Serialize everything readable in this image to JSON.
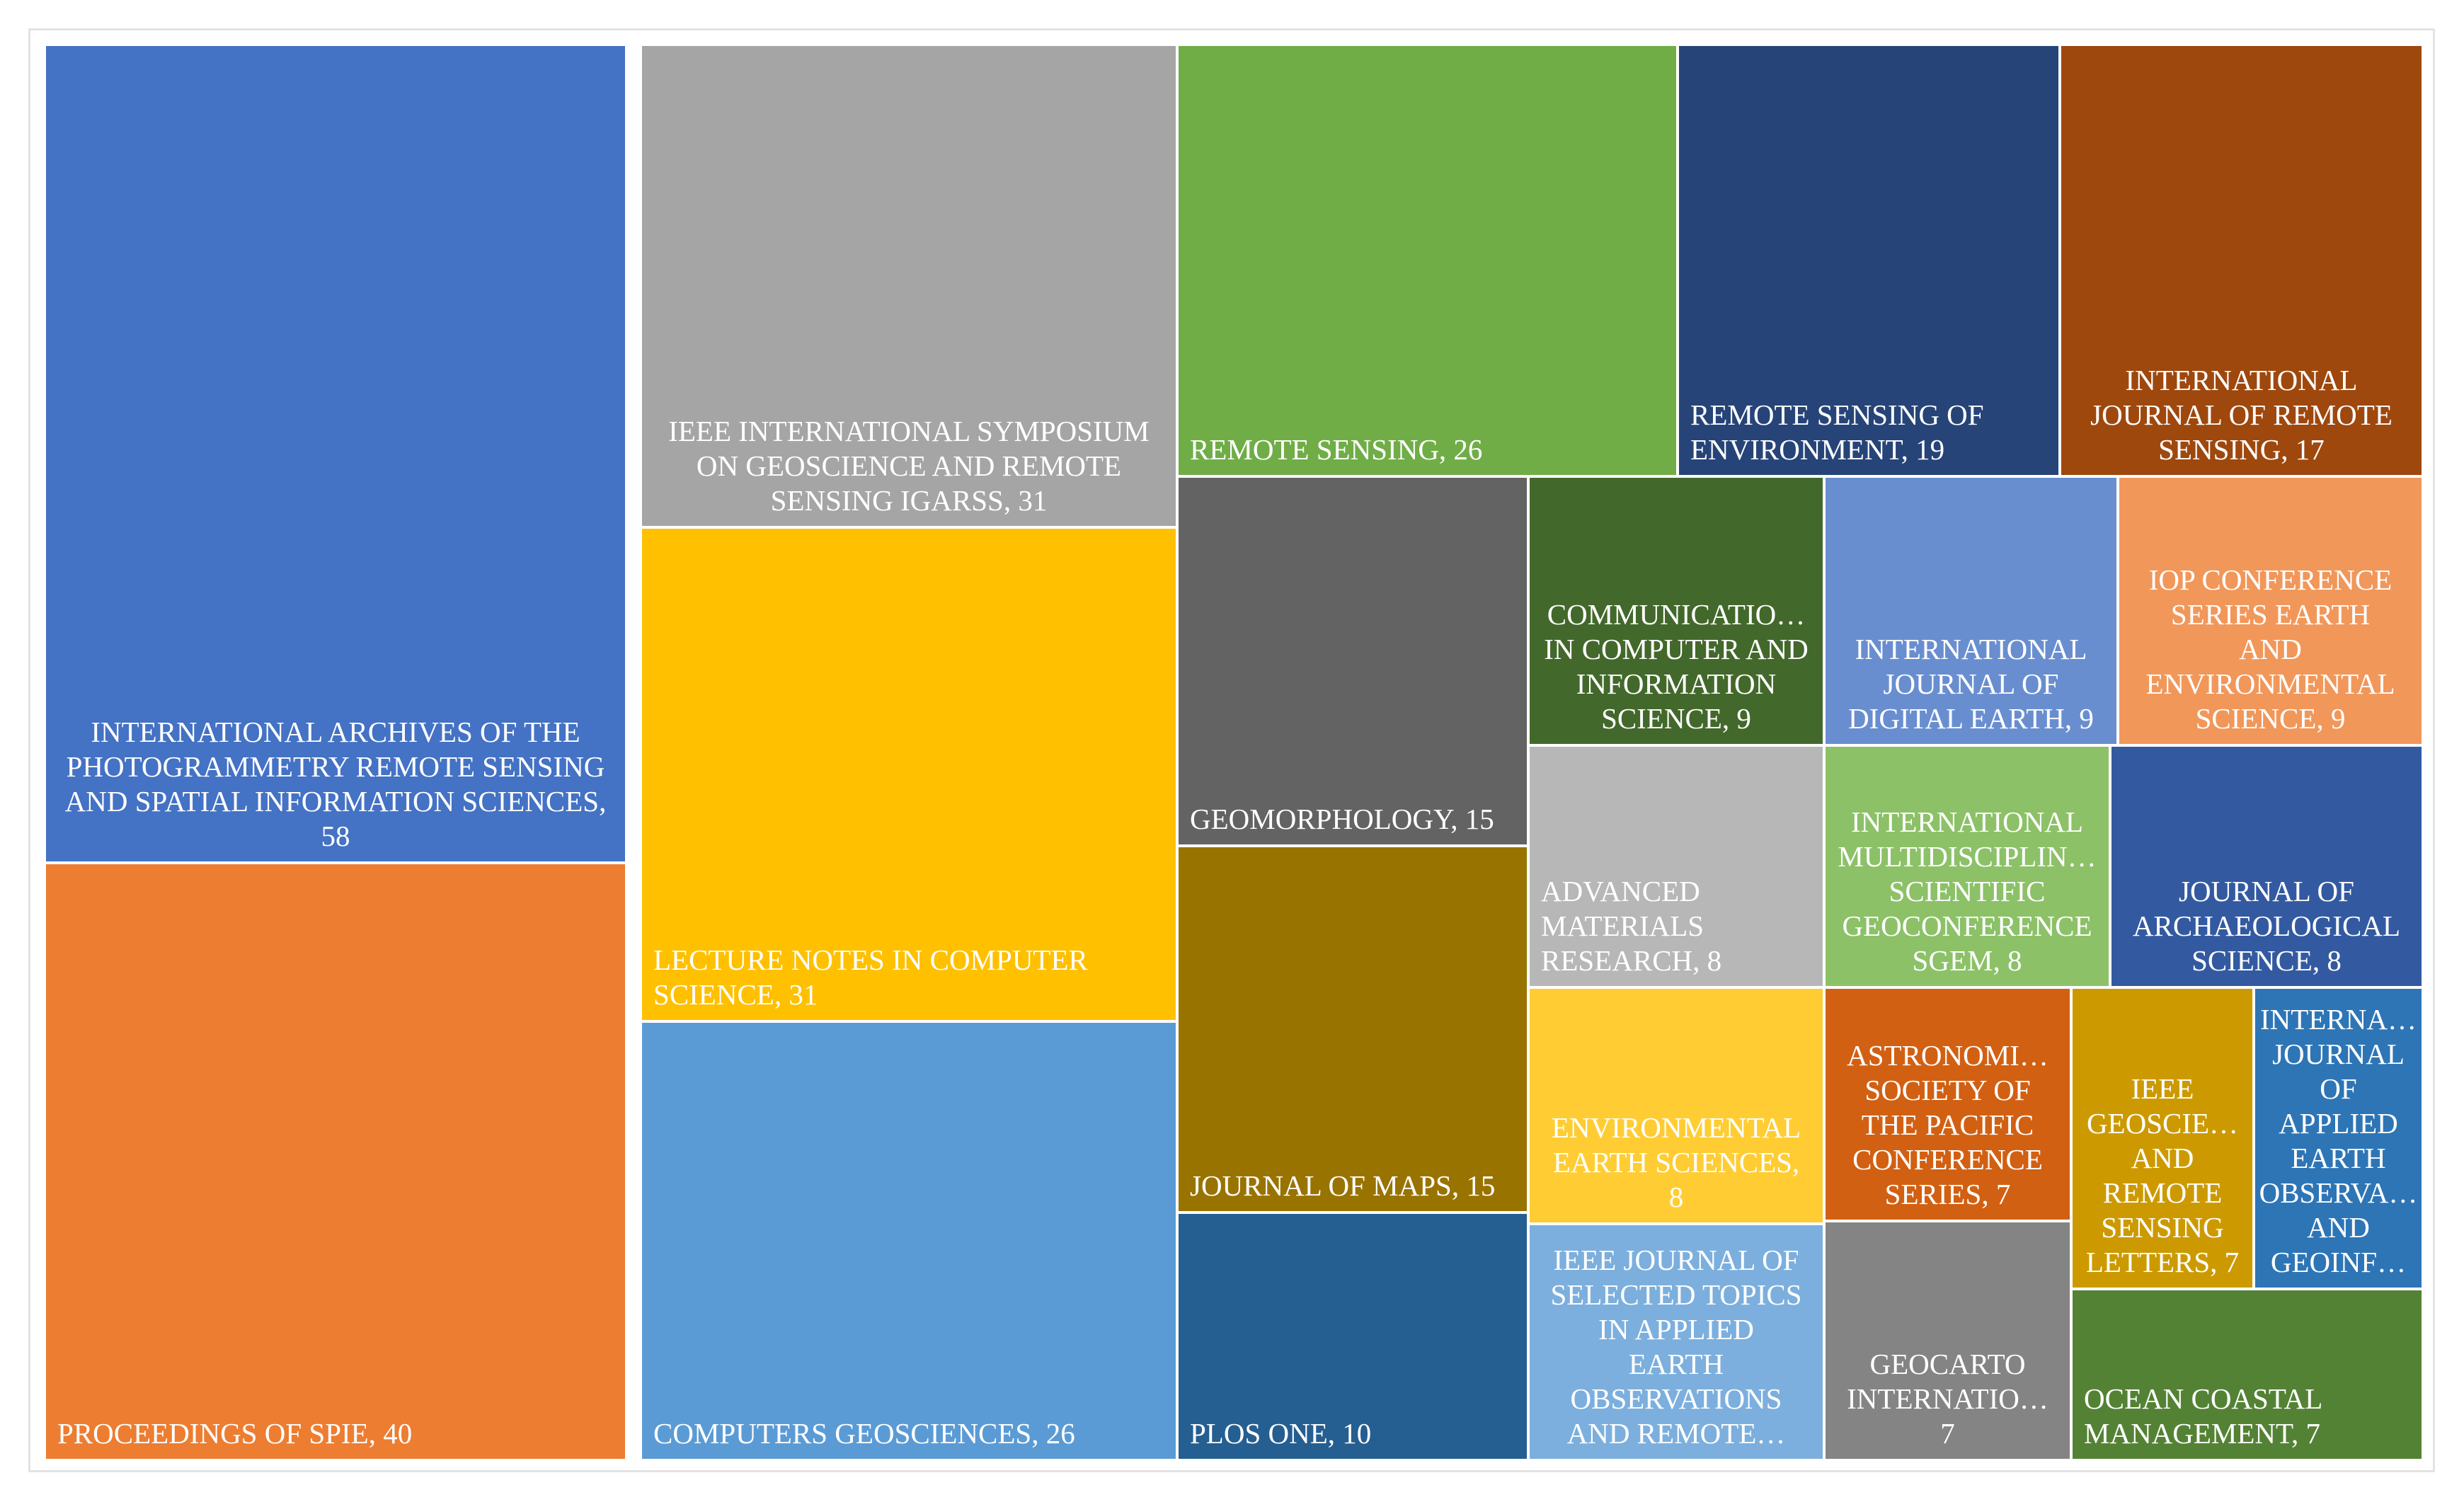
{
  "chart_data": {
    "type": "treemap",
    "title": "",
    "items": [
      {
        "label": "INTERNATIONAL ARCHIVES OF THE PHOTOGRAMMETRY REMOTE SENSING AND SPATIAL INFORMATION SCIENCES",
        "value": 58,
        "color": "#4472c4",
        "lines": [
          "INTERNATIONAL ARCHIVES OF THE",
          "PHOTOGRAMMETRY REMOTE SENSING",
          "AND SPATIAL INFORMATION SCIENCES,",
          "58"
        ]
      },
      {
        "label": "PROCEEDINGS OF SPIE",
        "value": 40,
        "color": "#ed7d31",
        "lines": [
          "PROCEEDINGS OF SPIE, 40"
        ]
      },
      {
        "label": "IEEE INTERNATIONAL SYMPOSIUM ON GEOSCIENCE AND REMOTE SENSING IGARSS",
        "value": 31,
        "color": "#a5a5a5",
        "lines": [
          "IEEE INTERNATIONAL SYMPOSIUM",
          "ON GEOSCIENCE AND REMOTE",
          "SENSING IGARSS, 31"
        ]
      },
      {
        "label": "LECTURE NOTES IN COMPUTER SCIENCE",
        "value": 31,
        "color": "#ffc000",
        "lines": [
          "LECTURE NOTES IN COMPUTER",
          "SCIENCE, 31"
        ]
      },
      {
        "label": "COMPUTERS GEOSCIENCES",
        "value": 26,
        "color": "#5b9bd5",
        "lines": [
          "COMPUTERS GEOSCIENCES, 26"
        ]
      },
      {
        "label": "REMOTE SENSING",
        "value": 26,
        "color": "#70ad47",
        "lines": [
          "REMOTE SENSING, 26"
        ]
      },
      {
        "label": "REMOTE SENSING OF ENVIRONMENT",
        "value": 19,
        "color": "#264478",
        "lines": [
          "REMOTE SENSING OF",
          "ENVIRONMENT, 19"
        ]
      },
      {
        "label": "INTERNATIONAL JOURNAL OF REMOTE SENSING",
        "value": 17,
        "color": "#9e480e",
        "lines": [
          "INTERNATIONAL",
          "JOURNAL OF REMOTE",
          "SENSING, 17"
        ]
      },
      {
        "label": "GEOMORPHOLOGY",
        "value": 15,
        "color": "#636363",
        "lines": [
          "GEOMORPHOLOGY, 15"
        ]
      },
      {
        "label": "JOURNAL OF MAPS",
        "value": 15,
        "color": "#997300",
        "lines": [
          "JOURNAL OF MAPS, 15"
        ]
      },
      {
        "label": "PLOS ONE",
        "value": 10,
        "color": "#255e91",
        "lines": [
          "PLOS ONE, 10"
        ]
      },
      {
        "label": "COMMUNICATIONS IN COMPUTER AND INFORMATION SCIENCE",
        "value": 9,
        "color": "#43682b",
        "lines": [
          "COMMUNICATIO…",
          "IN COMPUTER AND",
          "INFORMATION",
          "SCIENCE, 9"
        ]
      },
      {
        "label": "INTERNATIONAL JOURNAL OF DIGITAL EARTH",
        "value": 9,
        "color": "#698ed0",
        "lines": [
          "INTERNATIONAL",
          "JOURNAL OF",
          "DIGITAL EARTH, 9"
        ]
      },
      {
        "label": "IOP CONFERENCE SERIES EARTH AND ENVIRONMENTAL SCIENCE",
        "value": 9,
        "color": "#f1975a",
        "lines": [
          "IOP CONFERENCE",
          "SERIES EARTH",
          "AND",
          "ENVIRONMENTAL",
          "SCIENCE, 9"
        ]
      },
      {
        "label": "ADVANCED MATERIALS RESEARCH",
        "value": 8,
        "color": "#b7b7b7",
        "lines": [
          "ADVANCED",
          "MATERIALS",
          "RESEARCH, 8"
        ]
      },
      {
        "label": "INTERNATIONAL MULTIDISCIPLINARY SCIENTIFIC GEOCONFERENCE SGEM",
        "value": 8,
        "color": "#8cc168",
        "lines": [
          "INTERNATIONAL",
          "MULTIDISCIPLIN…",
          "SCIENTIFIC",
          "GEOCONFERENCE",
          "SGEM, 8"
        ]
      },
      {
        "label": "JOURNAL OF ARCHAEOLOGICAL SCIENCE",
        "value": 8,
        "color": "#335aa1",
        "lines": [
          "JOURNAL OF",
          "ARCHAEOLOGICAL",
          "SCIENCE, 8"
        ]
      },
      {
        "label": "ENVIRONMENTAL EARTH SCIENCES",
        "value": 8,
        "color": "#ffcd33",
        "lines": [
          "ENVIRONMENTAL",
          "EARTH SCIENCES,",
          "8"
        ]
      },
      {
        "label": "IEEE JOURNAL OF SELECTED TOPICS IN APPLIED EARTH OBSERVATIONS AND REMOTE SENSING",
        "value": 8,
        "color": "#7cafdd",
        "lines": [
          "IEEE JOURNAL OF",
          "SELECTED TOPICS",
          "IN APPLIED",
          "EARTH",
          "OBSERVATIONS",
          "AND REMOTE…"
        ]
      },
      {
        "label": "ASTRONOMICAL SOCIETY OF THE PACIFIC CONFERENCE SERIES",
        "value": 7,
        "color": "#d26012",
        "lines": [
          "ASTRONOMI…",
          "SOCIETY OF",
          "THE PACIFIC",
          "CONFERENCE",
          "SERIES, 7"
        ]
      },
      {
        "label": "IEEE GEOSCIENCE AND REMOTE SENSING LETTERS",
        "value": 7,
        "color": "#cc9a00",
        "lines": [
          "IEEE",
          "GEOSCIE…",
          "AND",
          "REMOTE",
          "SENSING",
          "LETTERS, 7"
        ]
      },
      {
        "label": "INTERNATIONAL JOURNAL OF APPLIED EARTH OBSERVATION AND GEOINFORMATION",
        "value": 7,
        "color": "#2e75b6",
        "lines": [
          "INTERNA…",
          "JOURNAL",
          "OF",
          "APPLIED",
          "EARTH",
          "OBSERVA…",
          "AND",
          "GEOINF…"
        ]
      },
      {
        "label": "GEOCARTO INTERNATIONAL",
        "value": 7,
        "color": "#848484",
        "lines": [
          "GEOCARTO",
          "INTERNATIO…",
          "7"
        ]
      },
      {
        "label": "OCEAN COASTAL MANAGEMENT",
        "value": 7,
        "color": "#548235",
        "lines": [
          "OCEAN COASTAL",
          "MANAGEMENT, 7"
        ]
      }
    ]
  }
}
